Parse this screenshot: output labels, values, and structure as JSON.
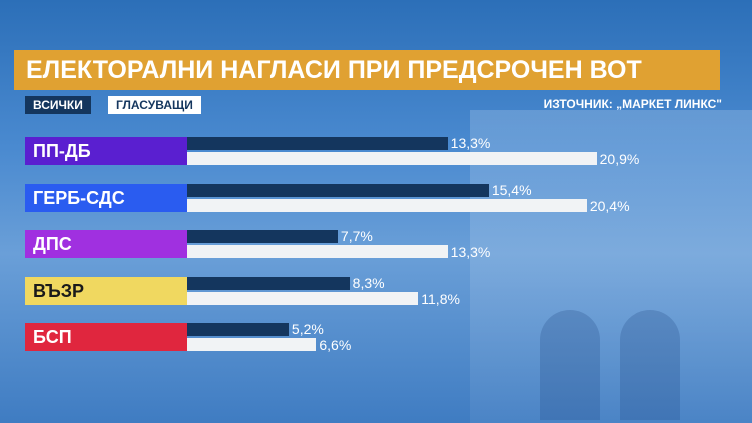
{
  "title": "ЕЛЕКТОРАЛНИ НАГЛАСИ ПРИ ПРЕДСРОЧЕН ВОТ",
  "source": "ИЗТОЧНИК: „МАРКЕТ ЛИНКС\"",
  "chart_data": {
    "type": "bar",
    "orientation": "horizontal",
    "categories": [
      "ПП-ДБ",
      "ГЕРБ-СДС",
      "ДПС",
      "ВЪЗР",
      "БСП"
    ],
    "category_colors": [
      "#5a1fd0",
      "#2a5cf0",
      "#a030e0",
      "#f0d860",
      "#e0263e"
    ],
    "series": [
      {
        "name": "ВСИЧКИ",
        "color": "#14365e",
        "values": [
          13.3,
          15.4,
          7.7,
          8.3,
          5.2
        ],
        "labels": [
          "13,3%",
          "15,4%",
          "7,7%",
          "8,3%",
          "5,2%"
        ]
      },
      {
        "name": "ГЛАСУВАЩИ",
        "color": "#f1f3f5",
        "values": [
          20.9,
          20.4,
          13.3,
          11.8,
          6.6
        ],
        "labels": [
          "20,9%",
          "20,4%",
          "13,3%",
          "11,8%",
          "6,6%"
        ]
      }
    ],
    "unit": "%"
  }
}
